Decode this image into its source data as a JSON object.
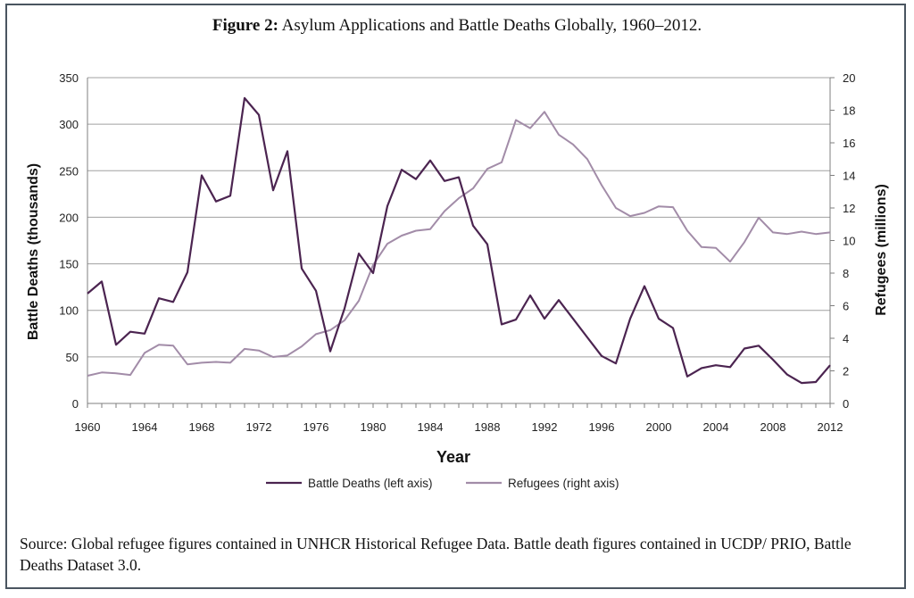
{
  "figure": {
    "label": "Figure 2:",
    "title": "Asylum Applications and Battle Deaths Globally, 1960–2012."
  },
  "source_note": "Source: Global refugee figures contained in UNHCR Historical Refugee Data. Battle death figures contained in UCDP/ PRIO, Battle Deaths Dataset 3.0.",
  "colors": {
    "battle_deaths": "#4b2450",
    "refugees": "#a28ca8",
    "grid": "#a0a0a0",
    "axis": "#7f7f7f",
    "frame": "#4a5560"
  },
  "chart_data": {
    "type": "line",
    "title": "",
    "xlabel": "Year",
    "ylabel_left": "Battle Deaths (thousands)",
    "ylabel_right": "Refugees (millions)",
    "xlim": [
      1960,
      2012
    ],
    "ylim_left": [
      0,
      350
    ],
    "ylim_right": [
      0,
      20
    ],
    "x_ticks": [
      1960,
      1964,
      1968,
      1972,
      1976,
      1980,
      1984,
      1988,
      1992,
      1996,
      2000,
      2004,
      2008,
      2012
    ],
    "y_ticks_left": [
      0,
      50,
      100,
      150,
      200,
      250,
      300,
      350
    ],
    "y_ticks_right": [
      0,
      2,
      4,
      6,
      8,
      10,
      12,
      14,
      16,
      18,
      20
    ],
    "grid": "horizontal",
    "legend_position": "bottom",
    "x": [
      1960,
      1961,
      1962,
      1963,
      1964,
      1965,
      1966,
      1967,
      1968,
      1969,
      1970,
      1971,
      1972,
      1973,
      1974,
      1975,
      1976,
      1977,
      1978,
      1979,
      1980,
      1981,
      1982,
      1983,
      1984,
      1985,
      1986,
      1987,
      1988,
      1989,
      1990,
      1991,
      1992,
      1993,
      1994,
      1995,
      1996,
      1997,
      1998,
      1999,
      2000,
      2001,
      2002,
      2003,
      2004,
      2005,
      2006,
      2007,
      2008,
      2009,
      2010,
      2011,
      2012
    ],
    "series": [
      {
        "name": "Battle Deaths (left axis)",
        "axis": "left",
        "values": [
          118,
          131,
          63,
          77,
          75,
          113,
          109,
          141,
          245,
          217,
          223,
          328,
          310,
          229,
          271,
          145,
          121,
          56,
          102,
          161,
          140,
          212,
          251,
          241,
          261,
          239,
          243,
          191,
          171,
          85,
          90,
          116,
          91,
          111,
          91,
          71,
          51,
          43,
          91,
          126,
          91,
          81,
          29,
          38,
          41,
          39,
          59,
          62,
          47,
          31,
          22,
          23,
          41
        ]
      },
      {
        "name": "Refugees (right axis)",
        "axis": "right",
        "values": [
          1.7,
          1.9,
          1.85,
          1.75,
          3.1,
          3.6,
          3.55,
          2.4,
          2.5,
          2.55,
          2.5,
          3.35,
          3.25,
          2.85,
          2.95,
          3.5,
          4.25,
          4.5,
          5.1,
          6.3,
          8.5,
          9.8,
          10.3,
          10.6,
          10.7,
          11.8,
          12.6,
          13.2,
          14.4,
          14.8,
          17.4,
          16.9,
          17.9,
          16.5,
          15.9,
          15.0,
          13.4,
          12.0,
          11.5,
          11.7,
          12.1,
          12.05,
          10.6,
          9.6,
          9.55,
          8.7,
          9.9,
          11.4,
          10.5,
          10.4,
          10.55,
          10.4,
          10.5
        ]
      }
    ]
  }
}
